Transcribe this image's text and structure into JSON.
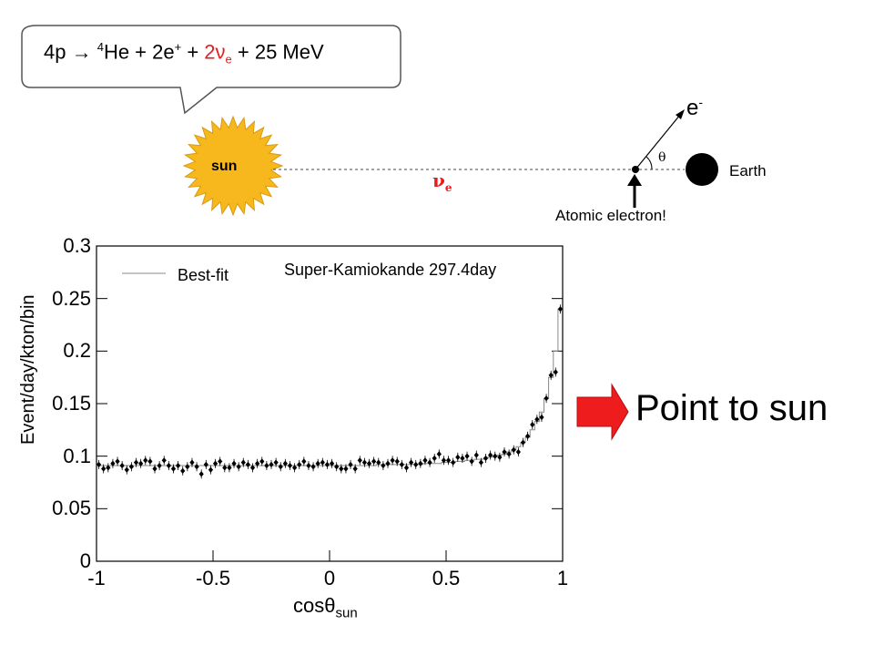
{
  "callout": {
    "prefix": "4p → ",
    "he_sup": "4",
    "he": "He + 2e",
    "e_sup": "+",
    "mid": " + ",
    "nu_red": "2ν",
    "nu_sub": "e",
    "suffix": " + 25 MeV"
  },
  "diagram": {
    "sun_label": "sun",
    "earth_label": "Earth",
    "electron_label": "e",
    "electron_sup": "-",
    "neutrino_label": "ν",
    "neutrino_sub": "e",
    "angle_label": "θ",
    "atomic_label": "Atomic electron!"
  },
  "point_label": "Point to sun",
  "colors": {
    "sun_fill": "#f7b81d",
    "sun_stroke": "#d89a10",
    "neutrino": "#e41e1e",
    "arrow": "#ee1c1c"
  },
  "chart_data": {
    "type": "scatter",
    "title": "Super-Kamiokande 297.4day",
    "legend": [
      "Best-fit"
    ],
    "xlabel": "cosθ",
    "xlabel_sub": "sun",
    "ylabel": "Event/day/kton/bin",
    "xlim": [
      -1,
      1
    ],
    "ylim": [
      0,
      0.3
    ],
    "xticks": [
      "-1",
      "-0.5",
      "0",
      "0.5",
      "1"
    ],
    "yticks": [
      "0",
      "0.05",
      "0.1",
      "0.15",
      "0.2",
      "0.25",
      "0.3"
    ],
    "series": [
      {
        "name": "data",
        "x": [
          -0.99,
          -0.97,
          -0.95,
          -0.93,
          -0.91,
          -0.89,
          -0.87,
          -0.85,
          -0.83,
          -0.81,
          -0.79,
          -0.77,
          -0.75,
          -0.73,
          -0.71,
          -0.69,
          -0.67,
          -0.65,
          -0.63,
          -0.61,
          -0.59,
          -0.57,
          -0.55,
          -0.53,
          -0.51,
          -0.49,
          -0.47,
          -0.45,
          -0.43,
          -0.41,
          -0.39,
          -0.37,
          -0.35,
          -0.33,
          -0.31,
          -0.29,
          -0.27,
          -0.25,
          -0.23,
          -0.21,
          -0.19,
          -0.17,
          -0.15,
          -0.13,
          -0.11,
          -0.09,
          -0.07,
          -0.05,
          -0.03,
          -0.01,
          0.01,
          0.03,
          0.05,
          0.07,
          0.09,
          0.11,
          0.13,
          0.15,
          0.17,
          0.19,
          0.21,
          0.23,
          0.25,
          0.27,
          0.29,
          0.31,
          0.33,
          0.35,
          0.37,
          0.39,
          0.41,
          0.43,
          0.45,
          0.47,
          0.49,
          0.51,
          0.53,
          0.55,
          0.57,
          0.59,
          0.61,
          0.63,
          0.65,
          0.67,
          0.69,
          0.71,
          0.73,
          0.75,
          0.77,
          0.79,
          0.81,
          0.83,
          0.85,
          0.87,
          0.89,
          0.91,
          0.93,
          0.95,
          0.97,
          0.99
        ],
        "y": [
          0.092,
          0.088,
          0.089,
          0.093,
          0.095,
          0.091,
          0.087,
          0.09,
          0.094,
          0.093,
          0.096,
          0.095,
          0.088,
          0.091,
          0.096,
          0.091,
          0.088,
          0.091,
          0.086,
          0.09,
          0.094,
          0.09,
          0.083,
          0.092,
          0.087,
          0.093,
          0.095,
          0.089,
          0.089,
          0.093,
          0.09,
          0.094,
          0.092,
          0.089,
          0.093,
          0.095,
          0.091,
          0.092,
          0.094,
          0.09,
          0.093,
          0.091,
          0.089,
          0.092,
          0.095,
          0.091,
          0.09,
          0.093,
          0.094,
          0.092,
          0.093,
          0.09,
          0.088,
          0.088,
          0.092,
          0.088,
          0.096,
          0.094,
          0.093,
          0.095,
          0.094,
          0.091,
          0.093,
          0.096,
          0.095,
          0.092,
          0.089,
          0.094,
          0.092,
          0.093,
          0.096,
          0.094,
          0.098,
          0.102,
          0.096,
          0.096,
          0.094,
          0.099,
          0.098,
          0.1,
          0.095,
          0.101,
          0.094,
          0.098,
          0.101,
          0.1,
          0.099,
          0.104,
          0.102,
          0.106,
          0.104,
          0.113,
          0.119,
          0.13,
          0.135,
          0.137,
          0.155,
          0.177,
          0.18,
          0.24
        ]
      },
      {
        "name": "Best-fit",
        "values": [
          0.091,
          0.091,
          0.091,
          0.091,
          0.091,
          0.091,
          0.091,
          0.091,
          0.091,
          0.091,
          0.091,
          0.091,
          0.091,
          0.091,
          0.091,
          0.091,
          0.091,
          0.091,
          0.091,
          0.091,
          0.091,
          0.091,
          0.091,
          0.091,
          0.091,
          0.091,
          0.091,
          0.091,
          0.091,
          0.091,
          0.091,
          0.091,
          0.091,
          0.091,
          0.091,
          0.091,
          0.091,
          0.091,
          0.091,
          0.091,
          0.091,
          0.091,
          0.091,
          0.091,
          0.091,
          0.091,
          0.091,
          0.091,
          0.091,
          0.091,
          0.091,
          0.091,
          0.091,
          0.091,
          0.091,
          0.091,
          0.091,
          0.091,
          0.091,
          0.091,
          0.092,
          0.092,
          0.092,
          0.092,
          0.092,
          0.092,
          0.092,
          0.092,
          0.092,
          0.092,
          0.093,
          0.093,
          0.093,
          0.093,
          0.094,
          0.094,
          0.094,
          0.095,
          0.095,
          0.096,
          0.096,
          0.097,
          0.097,
          0.098,
          0.099,
          0.1,
          0.101,
          0.102,
          0.104,
          0.106,
          0.109,
          0.113,
          0.118,
          0.125,
          0.133,
          0.142,
          0.155,
          0.175,
          0.2,
          0.24
        ]
      }
    ]
  }
}
